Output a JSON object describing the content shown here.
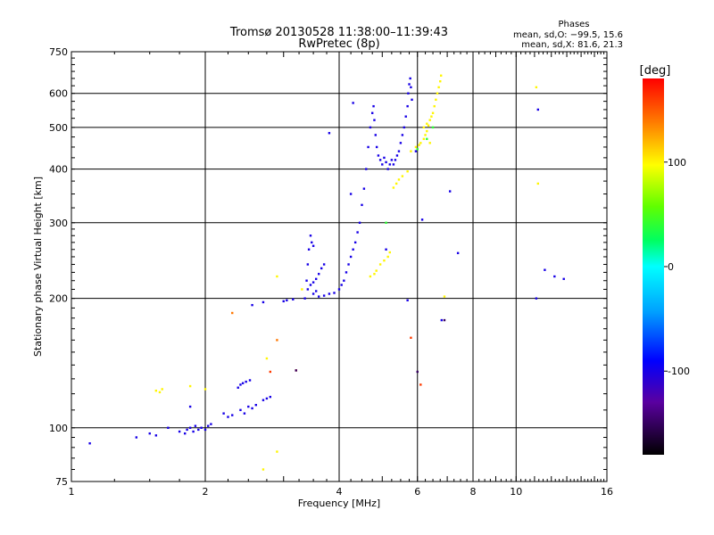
{
  "chart_data": {
    "type": "scatter",
    "title": "Tromsø 20130528 11:38:00–11:39:43",
    "subtitle": "RwPretec (8p)",
    "xlabel": "Frequency [MHz]",
    "ylabel": "Stationary phase Virtual Height [km]",
    "x_scale": "log",
    "y_scale": "log",
    "xlim": [
      1,
      16
    ],
    "ylim": [
      75,
      750
    ],
    "x_ticks": [
      1,
      2,
      4,
      6,
      8,
      10,
      16
    ],
    "y_ticks": [
      75,
      100,
      200,
      300,
      400,
      500,
      600,
      750
    ],
    "x_grid": [
      2,
      4,
      6,
      8,
      10
    ],
    "y_grid": [
      100,
      200,
      300,
      400,
      500,
      600
    ],
    "grid": true,
    "stats": {
      "heading": "Phases",
      "line_o": "mean, sd,O: −99.5, 15.6",
      "line_x": "mean, sd,X:  81.6, 21.3"
    },
    "colorbar": {
      "label": "[deg]",
      "range": [
        -180,
        180
      ],
      "ticks": [
        100,
        0,
        -100
      ]
    },
    "series": [
      {
        "phase_deg": -100,
        "points": [
          [
            1.1,
            92
          ],
          [
            1.4,
            95
          ],
          [
            1.5,
            97
          ],
          [
            1.55,
            96
          ],
          [
            1.65,
            100
          ],
          [
            1.75,
            98
          ],
          [
            1.8,
            97
          ],
          [
            1.82,
            99
          ],
          [
            1.85,
            100
          ],
          [
            1.88,
            98
          ],
          [
            1.9,
            101
          ],
          [
            1.93,
            99
          ],
          [
            1.96,
            100
          ],
          [
            2.0,
            99
          ],
          [
            2.03,
            101
          ],
          [
            2.06,
            102
          ],
          [
            2.2,
            108
          ],
          [
            2.25,
            106
          ],
          [
            2.3,
            107
          ],
          [
            2.4,
            110
          ],
          [
            2.45,
            108
          ],
          [
            2.5,
            112
          ],
          [
            2.55,
            111
          ],
          [
            2.6,
            113
          ],
          [
            2.7,
            116
          ],
          [
            2.75,
            117
          ],
          [
            2.8,
            118
          ],
          [
            2.37,
            124
          ],
          [
            2.4,
            126
          ],
          [
            2.43,
            127
          ],
          [
            2.47,
            128
          ],
          [
            2.52,
            129
          ],
          [
            1.85,
            112
          ],
          [
            2.55,
            193
          ],
          [
            2.7,
            196
          ],
          [
            3.0,
            197
          ],
          [
            3.05,
            198
          ],
          [
            3.15,
            199
          ],
          [
            3.35,
            200
          ],
          [
            3.38,
            220
          ],
          [
            3.4,
            240
          ],
          [
            3.42,
            260
          ],
          [
            3.45,
            280
          ],
          [
            3.5,
            265
          ],
          [
            3.47,
            270
          ],
          [
            3.5,
            205
          ],
          [
            3.55,
            208
          ],
          [
            3.6,
            202
          ],
          [
            3.7,
            203
          ],
          [
            3.8,
            205
          ],
          [
            3.9,
            206
          ],
          [
            4.0,
            210
          ],
          [
            3.4,
            210
          ],
          [
            3.45,
            215
          ],
          [
            3.5,
            218
          ],
          [
            3.55,
            222
          ],
          [
            3.6,
            228
          ],
          [
            3.65,
            235
          ],
          [
            3.7,
            240
          ],
          [
            4.05,
            215
          ],
          [
            4.1,
            220
          ],
          [
            4.15,
            230
          ],
          [
            4.2,
            240
          ],
          [
            4.25,
            250
          ],
          [
            4.3,
            260
          ],
          [
            4.35,
            270
          ],
          [
            4.4,
            285
          ],
          [
            4.45,
            300
          ],
          [
            4.5,
            330
          ],
          [
            4.55,
            360
          ],
          [
            4.6,
            400
          ],
          [
            4.65,
            450
          ],
          [
            4.7,
            500
          ],
          [
            4.75,
            540
          ],
          [
            4.78,
            560
          ],
          [
            4.8,
            520
          ],
          [
            4.83,
            480
          ],
          [
            4.86,
            450
          ],
          [
            4.9,
            430
          ],
          [
            4.95,
            420
          ],
          [
            5.0,
            410
          ],
          [
            5.05,
            425
          ],
          [
            5.1,
            415
          ],
          [
            5.15,
            400
          ],
          [
            5.2,
            410
          ],
          [
            5.25,
            420
          ],
          [
            5.3,
            410
          ],
          [
            5.35,
            420
          ],
          [
            5.4,
            430
          ],
          [
            5.45,
            440
          ],
          [
            5.5,
            460
          ],
          [
            5.55,
            480
          ],
          [
            5.6,
            500
          ],
          [
            5.65,
            530
          ],
          [
            5.7,
            560
          ],
          [
            5.72,
            600
          ],
          [
            5.75,
            630
          ],
          [
            5.78,
            650
          ],
          [
            5.8,
            620
          ],
          [
            5.83,
            580
          ],
          [
            3.8,
            485
          ],
          [
            4.3,
            570
          ],
          [
            5.95,
            440
          ],
          [
            6.15,
            305
          ],
          [
            7.1,
            355
          ],
          [
            7.4,
            255
          ],
          [
            5.7,
            198
          ],
          [
            6.8,
            178
          ],
          [
            11.2,
            550
          ],
          [
            11.6,
            233
          ],
          [
            12.2,
            225
          ],
          [
            12.8,
            222
          ],
          [
            11.1,
            200
          ],
          [
            5.1,
            260
          ],
          [
            4.25,
            350
          ]
        ]
      },
      {
        "phase_deg": 100,
        "points": [
          [
            1.55,
            122
          ],
          [
            1.58,
            121
          ],
          [
            1.6,
            123
          ],
          [
            1.85,
            125
          ],
          [
            2.0,
            123
          ],
          [
            2.7,
            80
          ],
          [
            2.9,
            88
          ],
          [
            2.75,
            145
          ],
          [
            2.9,
            225
          ],
          [
            3.3,
            210
          ],
          [
            4.7,
            225
          ],
          [
            4.8,
            228
          ],
          [
            4.85,
            232
          ],
          [
            4.95,
            240
          ],
          [
            5.05,
            245
          ],
          [
            5.15,
            250
          ],
          [
            5.2,
            256
          ],
          [
            5.3,
            362
          ],
          [
            5.38,
            370
          ],
          [
            5.45,
            378
          ],
          [
            5.55,
            385
          ],
          [
            5.7,
            395
          ],
          [
            5.8,
            440
          ],
          [
            5.95,
            450
          ],
          [
            6.05,
            455
          ],
          [
            6.1,
            460
          ],
          [
            6.2,
            470
          ],
          [
            6.25,
            480
          ],
          [
            6.3,
            490
          ],
          [
            6.35,
            505
          ],
          [
            6.4,
            520
          ],
          [
            6.45,
            530
          ],
          [
            6.5,
            540
          ],
          [
            6.55,
            560
          ],
          [
            6.6,
            580
          ],
          [
            6.65,
            600
          ],
          [
            6.7,
            620
          ],
          [
            6.75,
            640
          ],
          [
            6.78,
            660
          ],
          [
            6.2,
            500
          ],
          [
            6.3,
            510
          ],
          [
            6.4,
            460
          ],
          [
            11.1,
            620
          ],
          [
            11.2,
            370
          ],
          [
            6.9,
            202
          ]
        ]
      },
      {
        "phase_deg": 40,
        "points": [
          [
            5.1,
            300
          ],
          [
            6.0,
            445
          ],
          [
            6.3,
            470
          ],
          [
            6.5,
            500
          ]
        ]
      },
      {
        "phase_deg": 160,
        "points": [
          [
            2.8,
            135
          ],
          [
            6.1,
            126
          ],
          [
            5.8,
            162
          ],
          [
            3.2,
            136
          ]
        ]
      },
      {
        "phase_deg": 140,
        "points": [
          [
            2.9,
            160
          ],
          [
            2.3,
            185
          ]
        ]
      },
      {
        "phase_deg": -150,
        "points": [
          [
            6.0,
            135
          ],
          [
            6.9,
            178
          ],
          [
            3.2,
            136
          ]
        ]
      }
    ]
  }
}
